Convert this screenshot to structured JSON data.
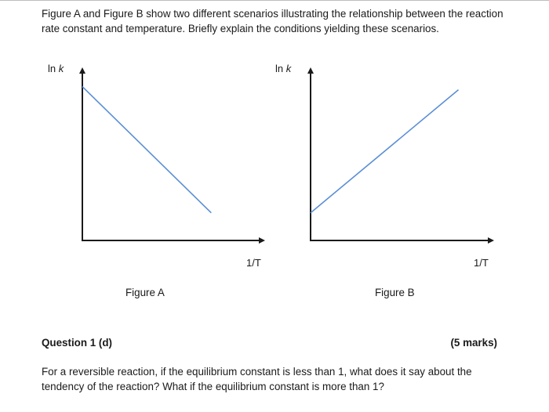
{
  "intro": "Figure A and Figure B show two different scenarios illustrating the relationship between the reaction rate constant and temperature. Briefly explain the conditions yielding these scenarios.",
  "colors": {
    "line": "#5b8fd6",
    "axis": "#1a1a1a"
  },
  "chart_data": [
    {
      "type": "line",
      "caption": "Figure A",
      "ylabel_prefix": "ln ",
      "ylabel_var": "k",
      "xlabel": "1/T",
      "trend": "decreasing",
      "series": [
        {
          "x": [
            0.0,
            1.0
          ],
          "y": [
            1.0,
            0.18
          ]
        }
      ],
      "xlim": [
        0,
        1.4
      ],
      "ylim": [
        0,
        1.1
      ]
    },
    {
      "type": "line",
      "caption": "Figure B",
      "ylabel_prefix": "ln ",
      "ylabel_var": "k",
      "xlabel": "1/T",
      "trend": "increasing",
      "series": [
        {
          "x": [
            0.0,
            1.0
          ],
          "y": [
            0.18,
            0.98
          ]
        }
      ],
      "xlim": [
        0,
        1.22
      ],
      "ylim": [
        0,
        1.1
      ]
    }
  ],
  "question": {
    "heading": "Question 1 (d)",
    "marks": "(5 marks)",
    "body": "For a reversible reaction, if the equilibrium constant is less than 1, what does it say about the tendency of the reaction? What if the equilibrium constant is more than 1?"
  }
}
